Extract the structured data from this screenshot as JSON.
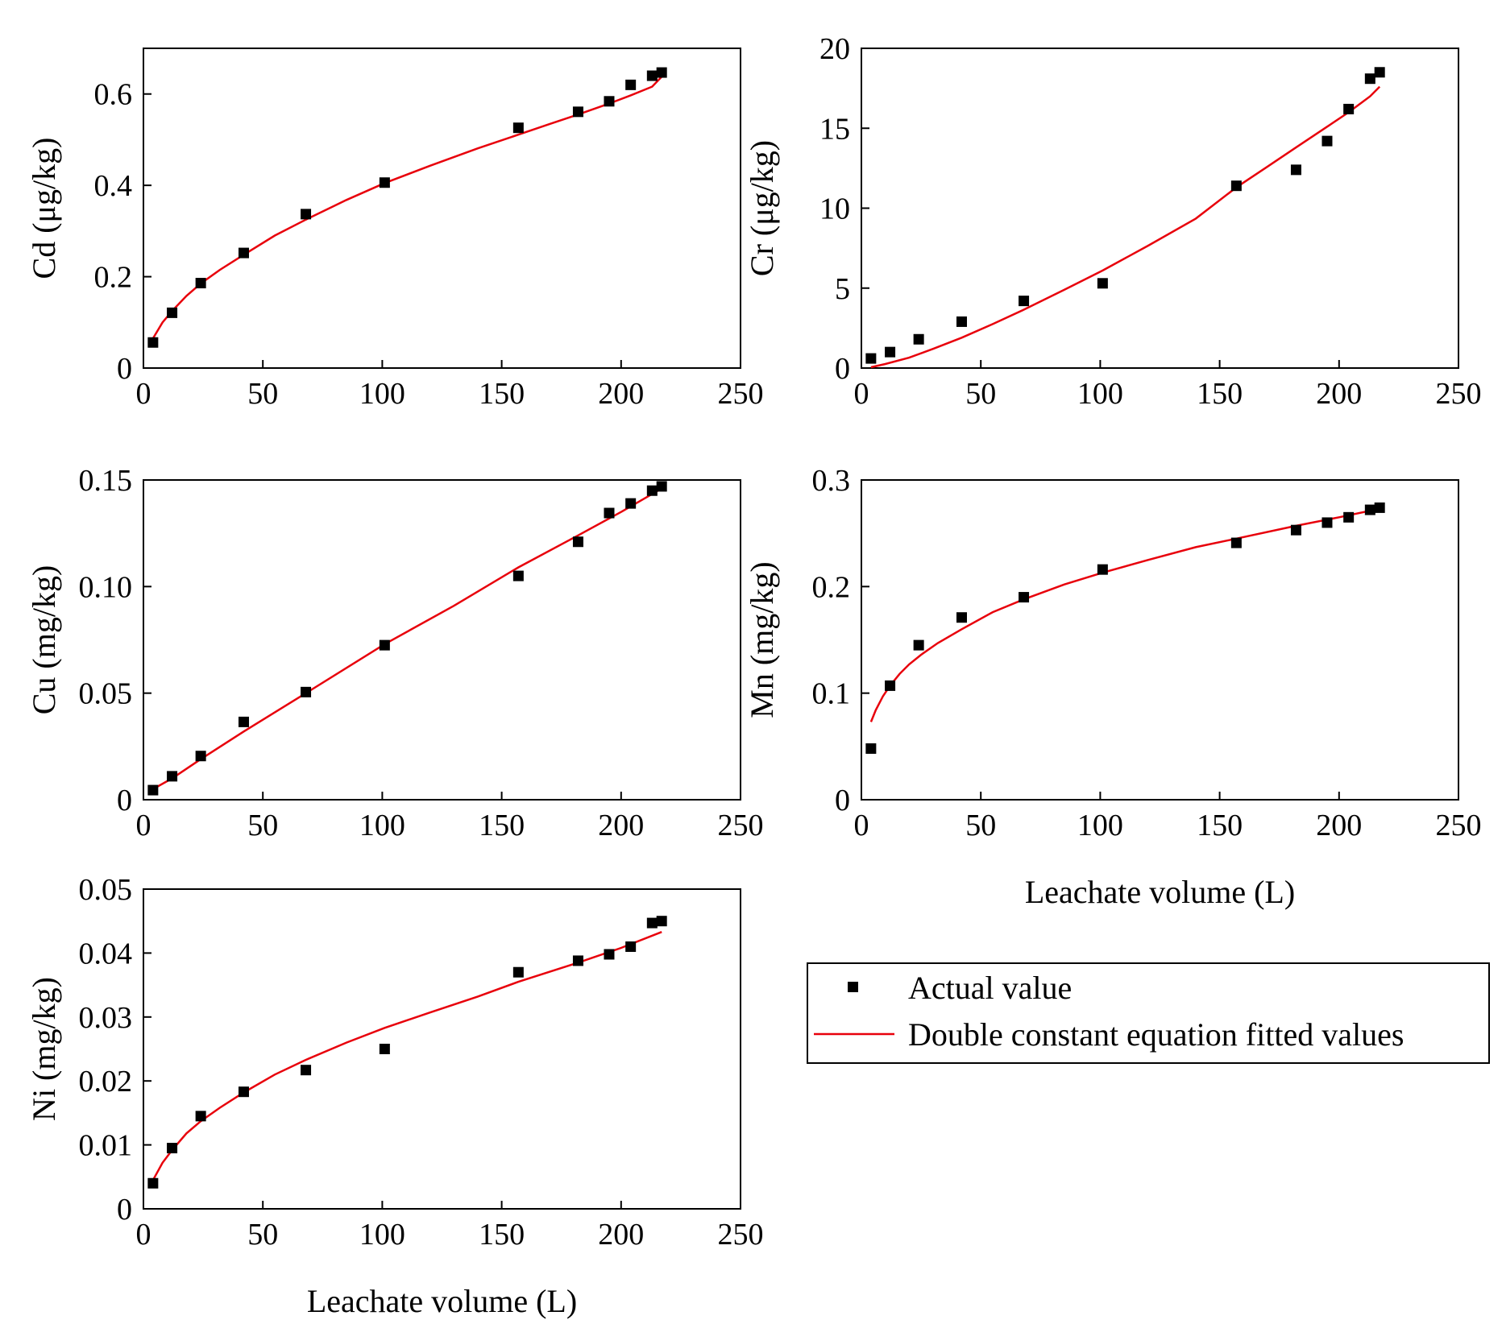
{
  "colors": {
    "points": "#000000",
    "fit_line": "#e8000b",
    "frame": "#000000"
  },
  "legend": {
    "items": [
      {
        "label": "Actual value",
        "marker": "black-square"
      },
      {
        "label": "Double constant equation fitted values",
        "marker": "red-line"
      }
    ]
  },
  "chart_data": [
    {
      "id": "cd",
      "type": "scatter",
      "ylabel": "Cd (μg/kg)",
      "xlabel": "",
      "xlim": [
        0,
        250
      ],
      "ylim": [
        0,
        0.7
      ],
      "xticks": [
        0,
        50,
        100,
        150,
        200,
        250
      ],
      "xtick_labels": [
        "0",
        "50",
        "100",
        "150",
        "200",
        "250"
      ],
      "yticks": [
        0,
        0.2,
        0.4,
        0.6
      ],
      "ytick_labels": [
        "0",
        "0.2",
        "0.4",
        "0.6"
      ],
      "series": [
        {
          "name": "Actual value",
          "kind": "points",
          "x": [
            4,
            12,
            24,
            42,
            68,
            101,
            157,
            182,
            195,
            204,
            213,
            217
          ],
          "y": [
            0.056,
            0.121,
            0.186,
            0.252,
            0.337,
            0.406,
            0.526,
            0.561,
            0.584,
            0.62,
            0.64,
            0.647
          ]
        },
        {
          "name": "Double constant equation fitted values",
          "kind": "line",
          "x": [
            4,
            8,
            12,
            18,
            24,
            32,
            42,
            55,
            68,
            85,
            101,
            120,
            140,
            157,
            170,
            182,
            195,
            204,
            213,
            217
          ],
          "y": [
            0.065,
            0.1,
            0.125,
            0.158,
            0.185,
            0.215,
            0.248,
            0.29,
            0.325,
            0.368,
            0.405,
            0.443,
            0.481,
            0.511,
            0.534,
            0.555,
            0.579,
            0.597,
            0.616,
            0.638
          ]
        }
      ]
    },
    {
      "id": "cr",
      "type": "scatter",
      "ylabel": "Cr (μg/kg)",
      "xlabel": "",
      "xlim": [
        0,
        250
      ],
      "ylim": [
        0,
        20
      ],
      "xticks": [
        0,
        50,
        100,
        150,
        200,
        250
      ],
      "xtick_labels": [
        "0",
        "50",
        "100",
        "150",
        "200",
        "250"
      ],
      "yticks": [
        0,
        5,
        10,
        15,
        20
      ],
      "ytick_labels": [
        "0",
        "5",
        "10",
        "15",
        "20"
      ],
      "series": [
        {
          "name": "Actual value",
          "kind": "points",
          "x": [
            4,
            12,
            24,
            42,
            68,
            101,
            157,
            182,
            195,
            204,
            213,
            217
          ],
          "y": [
            0.6,
            1.0,
            1.8,
            2.9,
            4.2,
            5.3,
            11.4,
            12.4,
            14.2,
            16.2,
            18.1,
            18.5
          ]
        },
        {
          "name": "Double constant equation fitted values",
          "kind": "line",
          "x": [
            4,
            10,
            20,
            30,
            42,
            55,
            68,
            85,
            101,
            120,
            140,
            157,
            170,
            182,
            195,
            204,
            213,
            217
          ],
          "y": [
            0.05,
            0.25,
            0.65,
            1.2,
            1.9,
            2.75,
            3.65,
            4.9,
            6.1,
            7.65,
            9.35,
            11.3,
            12.6,
            13.8,
            15.1,
            16.0,
            17.0,
            17.6
          ]
        }
      ]
    },
    {
      "id": "cu",
      "type": "scatter",
      "ylabel": "Cu (mg/kg)",
      "xlabel": "",
      "xlim": [
        0,
        250
      ],
      "ylim": [
        0,
        0.15
      ],
      "xticks": [
        0,
        50,
        100,
        150,
        200,
        250
      ],
      "xtick_labels": [
        "0",
        "50",
        "100",
        "150",
        "200",
        "250"
      ],
      "yticks": [
        0,
        0.05,
        0.1,
        0.15
      ],
      "ytick_labels": [
        "0",
        "0.05",
        "0.10",
        "0.15"
      ],
      "series": [
        {
          "name": "Actual value",
          "kind": "points",
          "x": [
            4,
            12,
            24,
            42,
            68,
            101,
            157,
            182,
            195,
            204,
            213,
            217
          ],
          "y": [
            0.0045,
            0.011,
            0.0205,
            0.0365,
            0.0505,
            0.0725,
            0.105,
            0.121,
            0.1345,
            0.139,
            0.145,
            0.147
          ]
        },
        {
          "name": "Double constant equation fitted values",
          "kind": "line",
          "x": [
            4,
            12,
            24,
            42,
            68,
            101,
            130,
            157,
            182,
            200,
            217
          ],
          "y": [
            0.005,
            0.01,
            0.019,
            0.032,
            0.05,
            0.073,
            0.091,
            0.109,
            0.124,
            0.135,
            0.146
          ]
        }
      ]
    },
    {
      "id": "mn",
      "type": "scatter",
      "ylabel": "Mn (mg/kg)",
      "xlabel": "Leachate volume (L)",
      "xlim": [
        0,
        250
      ],
      "ylim": [
        0,
        0.3
      ],
      "xticks": [
        0,
        50,
        100,
        150,
        200,
        250
      ],
      "xtick_labels": [
        "0",
        "50",
        "100",
        "150",
        "200",
        "250"
      ],
      "yticks": [
        0,
        0.1,
        0.2,
        0.3
      ],
      "ytick_labels": [
        "0",
        "0.1",
        "0.2",
        "0.3"
      ],
      "series": [
        {
          "name": "Actual value",
          "kind": "points",
          "x": [
            4,
            12,
            24,
            42,
            68,
            101,
            157,
            182,
            195,
            204,
            213,
            217
          ],
          "y": [
            0.048,
            0.107,
            0.145,
            0.171,
            0.19,
            0.216,
            0.241,
            0.253,
            0.26,
            0.265,
            0.272,
            0.274
          ]
        },
        {
          "name": "Double constant equation fitted values",
          "kind": "line",
          "x": [
            4,
            6,
            9,
            12,
            16,
            20,
            25,
            32,
            42,
            55,
            68,
            85,
            101,
            120,
            140,
            157,
            182,
            200,
            217
          ],
          "y": [
            0.073,
            0.084,
            0.097,
            0.107,
            0.118,
            0.127,
            0.136,
            0.147,
            0.16,
            0.176,
            0.188,
            0.202,
            0.213,
            0.225,
            0.237,
            0.245,
            0.257,
            0.265,
            0.273
          ]
        }
      ]
    },
    {
      "id": "ni",
      "type": "scatter",
      "ylabel": "Ni (mg/kg)",
      "xlabel": "Leachate volume (L)",
      "xlim": [
        0,
        250
      ],
      "ylim": [
        0,
        0.05
      ],
      "xticks": [
        0,
        50,
        100,
        150,
        200,
        250
      ],
      "xtick_labels": [
        "0",
        "50",
        "100",
        "150",
        "200",
        "250"
      ],
      "yticks": [
        0,
        0.01,
        0.02,
        0.03,
        0.04,
        0.05
      ],
      "ytick_labels": [
        "0",
        "0.01",
        "0.02",
        "0.03",
        "0.04",
        "0.05"
      ],
      "series": [
        {
          "name": "Actual value",
          "kind": "points",
          "x": [
            4,
            12,
            24,
            42,
            68,
            101,
            157,
            182,
            195,
            204,
            213,
            217
          ],
          "y": [
            0.004,
            0.0095,
            0.0145,
            0.0183,
            0.0217,
            0.025,
            0.037,
            0.0388,
            0.0398,
            0.041,
            0.0447,
            0.045
          ]
        },
        {
          "name": "Double constant equation fitted values",
          "kind": "line",
          "x": [
            4,
            8,
            12,
            18,
            24,
            32,
            42,
            55,
            68,
            85,
            101,
            120,
            140,
            157,
            182,
            200,
            217
          ],
          "y": [
            0.0045,
            0.0072,
            0.0092,
            0.0118,
            0.0137,
            0.0158,
            0.0182,
            0.021,
            0.0233,
            0.026,
            0.0283,
            0.0307,
            0.0332,
            0.0355,
            0.0385,
            0.0408,
            0.0433
          ]
        }
      ]
    }
  ]
}
